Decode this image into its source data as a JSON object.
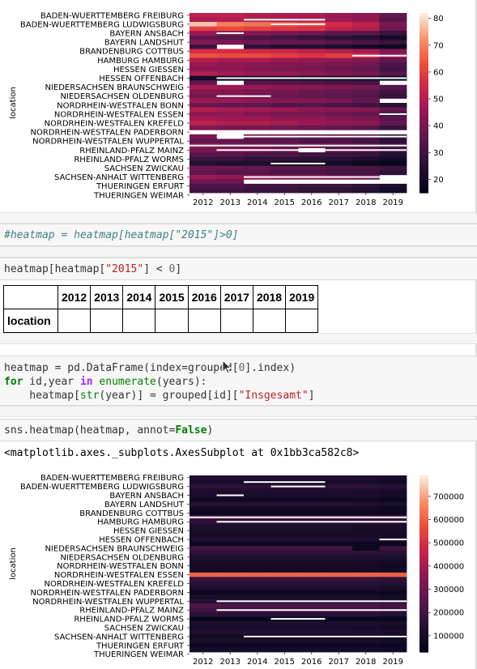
{
  "cells": {
    "comment_cell": {
      "text": "#heatmap = heatmap[heatmap[\"2015\"]>0]"
    },
    "filter_cell": {
      "prefix": "heatmap[heatmap[",
      "string": "\"2015\"",
      "mid": "] < ",
      "number": "0",
      "suffix": "]"
    },
    "build_cell": {
      "line1_a": "heatmap = pd.DataFrame(index=grouped[",
      "line1_num": "0",
      "line1_b": "].index)",
      "line2_kw": "for",
      "line2_a": " id,year ",
      "line2_in": "in",
      "line2_fn": " enumerate",
      "line2_b": "(years):",
      "line3_a": "    heatmap[",
      "line3_fn": "str",
      "line3_b": "(year)] = grouped[id][",
      "line3_str": "\"Insgesamt\"",
      "line3_c": "]"
    },
    "plot_cell": {
      "a": "sns.heatmap(heatmap, annot=",
      "kw": "False",
      "b": ")"
    },
    "output_repr": "<matplotlib.axes._subplots.AxesSubplot at 0x1bb3ca582c8>"
  },
  "table": {
    "columns": [
      "2012",
      "2013",
      "2014",
      "2015",
      "2016",
      "2017",
      "2018",
      "2019"
    ],
    "index_name": "location"
  },
  "chart_data": [
    {
      "type": "heatmap",
      "ylabel": "location",
      "xlabel": "",
      "x": [
        "2012",
        "2013",
        "2014",
        "2015",
        "2016",
        "2017",
        "2018",
        "2019"
      ],
      "y_tick_labels": [
        "BADEN-WUERTTEMBERG FREIBURG",
        "BADEN-WUERTTEMBERG LUDWIGSBURG",
        "BAYERN ANSBACH",
        "BAYERN LANDSHUT",
        "BRANDENBURG COTTBUS",
        "HAMBURG HAMBURG",
        "HESSEN GIESSEN",
        "HESSEN OFFENBACH",
        "NIEDERSACHSEN BRAUNSCHWEIG",
        "NIEDERSACHSEN OLDENBURG",
        "NORDRHEIN-WESTFALEN BONN",
        "NORDRHEIN-WESTFALEN ESSEN",
        "NORDRHEIN-WESTFALEN KREFELD",
        "NORDRHEIN-WESTFALEN PADERBORN",
        "NORDRHEIN-WESTFALEN WUPPERTAL",
        "RHEINLAND-PFALZ MAINZ",
        "RHEINLAND-PFALZ WORMS",
        "SACHSEN ZWICKAU",
        "SACHSEN-ANHALT WITTENBERG",
        "THUERINGEN ERFURT",
        "THUERINGEN WEIMAR"
      ],
      "rows": 40,
      "colorbar_ticks": [
        20,
        30,
        40,
        50,
        60,
        70,
        80
      ],
      "vmin": 15,
      "vmax": 82,
      "colormap": "rocket",
      "values": [
        [
          52,
          52,
          50,
          48,
          48,
          46,
          44,
          36
        ],
        [
          48,
          50,
          50,
          49,
          48,
          46,
          44,
          34
        ],
        [
          78,
          70,
          68,
          64,
          62,
          56,
          52,
          40
        ],
        [
          60,
          62,
          60,
          58,
          57,
          52,
          50,
          38
        ],
        [
          46,
          42,
          42,
          40,
          38,
          34,
          34,
          28
        ],
        [
          36,
          34,
          32,
          30,
          28,
          26,
          24,
          20
        ],
        [
          42,
          40,
          38,
          37,
          36,
          34,
          32,
          28
        ],
        [
          28,
          null,
          26,
          24,
          24,
          22,
          20,
          18
        ],
        [
          56,
          56,
          55,
          54,
          52,
          50,
          48,
          42
        ],
        [
          64,
          62,
          62,
          60,
          58,
          60,
          56,
          46
        ],
        [
          50,
          48,
          48,
          46,
          45,
          44,
          42,
          36
        ],
        [
          46,
          44,
          43,
          42,
          41,
          40,
          38,
          32
        ],
        [
          44,
          44,
          42,
          40,
          40,
          38,
          36,
          30
        ],
        [
          50,
          48,
          46,
          46,
          44,
          42,
          40,
          34
        ],
        [
          20,
          18,
          18,
          18,
          18,
          18,
          18,
          16
        ],
        [
          36,
          null,
          34,
          33,
          32,
          31,
          30,
          null
        ],
        [
          48,
          46,
          46,
          44,
          43,
          42,
          40,
          34
        ],
        [
          42,
          42,
          40,
          39,
          38,
          36,
          35,
          30
        ],
        [
          40,
          40,
          38,
          38,
          36,
          35,
          34,
          28
        ],
        [
          46,
          46,
          44,
          42,
          42,
          40,
          36,
          null
        ],
        [
          38,
          36,
          36,
          34,
          34,
          32,
          30,
          26
        ],
        [
          50,
          48,
          47,
          46,
          44,
          43,
          42,
          36
        ],
        [
          44,
          44,
          42,
          40,
          40,
          38,
          36,
          30
        ],
        [
          48,
          46,
          46,
          44,
          44,
          42,
          40,
          34
        ],
        [
          52,
          50,
          50,
          48,
          46,
          44,
          44,
          36
        ],
        [
          42,
          40,
          40,
          38,
          38,
          36,
          34,
          28
        ],
        [
          null,
          null,
          null,
          null,
          null,
          null,
          null,
          null
        ],
        [
          40,
          null,
          38,
          37,
          36,
          34,
          34,
          28
        ],
        [
          36,
          36,
          34,
          34,
          32,
          32,
          30,
          26
        ],
        [
          44,
          42,
          42,
          40,
          40,
          38,
          36,
          32
        ],
        [
          40,
          40,
          38,
          36,
          null,
          34,
          32,
          28
        ],
        [
          34,
          34,
          32,
          32,
          30,
          30,
          28,
          24
        ],
        [
          28,
          28,
          26,
          26,
          26,
          24,
          22,
          20
        ],
        [
          24,
          22,
          22,
          20,
          20,
          20,
          18,
          16
        ],
        [
          38,
          38,
          36,
          34,
          34,
          32,
          32,
          28
        ],
        [
          36,
          34,
          34,
          32,
          32,
          30,
          30,
          26
        ],
        [
          46,
          44,
          44,
          42,
          42,
          40,
          38,
          null
        ],
        [
          38,
          38,
          null,
          null,
          null,
          null,
          null,
          null
        ],
        [
          32,
          32,
          30,
          30,
          28,
          28,
          26,
          22
        ],
        [
          30,
          30,
          28,
          28,
          26,
          26,
          24,
          20
        ]
      ],
      "gaps": [
        {
          "row": 1,
          "from": 2,
          "to": 5
        },
        {
          "row": 2,
          "from": 3,
          "to": 5
        },
        {
          "row": 4,
          "from": 1,
          "to": 2
        },
        {
          "row": 9,
          "from": 6,
          "to": 8
        },
        {
          "row": 14,
          "from": 1,
          "to": 8
        },
        {
          "row": 18,
          "from": 1,
          "to": 3
        },
        {
          "row": 22,
          "from": 7,
          "to": 8
        },
        {
          "row": 27,
          "from": 1,
          "to": 8
        },
        {
          "row": 29,
          "from": 0,
          "to": 8
        },
        {
          "row": 30,
          "from": 1,
          "to": 8
        },
        {
          "row": 33,
          "from": 3,
          "to": 5
        },
        {
          "row": 36,
          "from": 2,
          "to": 8
        },
        {
          "row": 37,
          "from": 2,
          "to": 5
        }
      ]
    },
    {
      "type": "heatmap",
      "ylabel": "location",
      "xlabel": "",
      "x": [
        "2012",
        "2013",
        "2014",
        "2015",
        "2016",
        "2017",
        "2018",
        "2019"
      ],
      "y_tick_labels": [
        "BADEN-WUERTTEMBERG FREIBURG",
        "BADEN-WUERTTEMBERG LUDWIGSBURG",
        "BAYERN ANSBACH",
        "BAYERN LANDSHUT",
        "BRANDENBURG COTTBUS",
        "HAMBURG HAMBURG",
        "HESSEN GIESSEN",
        "HESSEN OFFENBACH",
        "NIEDERSACHSEN BRAUNSCHWEIG",
        "NIEDERSACHSEN OLDENBURG",
        "NORDRHEIN-WESTFALEN BONN",
        "NORDRHEIN-WESTFALEN ESSEN",
        "NORDRHEIN-WESTFALEN KREFELD",
        "NORDRHEIN-WESTFALEN PADERBORN",
        "NORDRHEIN-WESTFALEN WUPPERTAL",
        "RHEINLAND-PFALZ MAINZ",
        "RHEINLAND-PFALZ WORMS",
        "SACHSEN ZWICKAU",
        "SACHSEN-ANHALT WITTENBERG",
        "THUERINGEN ERFURT",
        "THUERINGEN WEIMAR"
      ],
      "rows": 40,
      "colorbar_ticks": [
        100000,
        200000,
        300000,
        400000,
        500000,
        600000,
        700000
      ],
      "colorbar_labels": [
        "100000",
        "200000",
        "300000",
        "400000",
        "500000",
        "600000",
        "700000"
      ],
      "vmin": 30000,
      "vmax": 790000,
      "colormap": "rocket",
      "values": [
        [
          120000,
          120000,
          120000,
          120000,
          120000,
          120000,
          110000,
          100000
        ],
        [
          90000,
          90000,
          90000,
          90000,
          90000,
          90000,
          90000,
          80000
        ],
        [
          150000,
          150000,
          150000,
          150000,
          150000,
          150000,
          150000,
          140000
        ],
        [
          110000,
          110000,
          110000,
          110000,
          110000,
          110000,
          100000,
          90000
        ],
        [
          100000,
          100000,
          100000,
          100000,
          100000,
          100000,
          95000,
          90000
        ],
        [
          70000,
          70000,
          70000,
          70000,
          70000,
          70000,
          70000,
          60000
        ],
        [
          130000,
          130000,
          130000,
          130000,
          130000,
          130000,
          120000,
          110000
        ],
        [
          80000,
          80000,
          80000,
          80000,
          80000,
          80000,
          80000,
          70000
        ],
        [
          60000,
          60000,
          60000,
          60000,
          60000,
          60000,
          60000,
          60000
        ],
        [
          200000,
          200000,
          200000,
          200000,
          200000,
          200000,
          200000,
          190000
        ],
        [
          160000,
          160000,
          160000,
          160000,
          160000,
          160000,
          160000,
          150000
        ],
        [
          110000,
          110000,
          110000,
          110000,
          110000,
          110000,
          100000,
          100000
        ],
        [
          100000,
          100000,
          100000,
          100000,
          100000,
          100000,
          90000,
          90000
        ],
        [
          90000,
          90000,
          90000,
          90000,
          90000,
          90000,
          90000,
          80000
        ],
        [
          120000,
          120000,
          120000,
          120000,
          120000,
          120000,
          110000,
          110000
        ],
        [
          60000,
          60000,
          60000,
          60000,
          60000,
          60000,
          60000,
          60000
        ],
        [
          200000,
          200000,
          200000,
          200000,
          200000,
          200000,
          60000,
          190000
        ],
        [
          150000,
          150000,
          150000,
          150000,
          150000,
          150000,
          150000,
          140000
        ],
        [
          120000,
          120000,
          120000,
          120000,
          120000,
          120000,
          110000,
          110000
        ],
        [
          100000,
          100000,
          100000,
          100000,
          100000,
          100000,
          100000,
          90000
        ],
        [
          80000,
          80000,
          80000,
          80000,
          80000,
          80000,
          80000,
          70000
        ],
        [
          90000,
          90000,
          90000,
          90000,
          90000,
          90000,
          90000,
          80000
        ],
        [
          610000,
          610000,
          610000,
          610000,
          610000,
          610000,
          610000,
          600000
        ],
        [
          170000,
          170000,
          170000,
          170000,
          170000,
          170000,
          170000,
          160000
        ],
        [
          140000,
          140000,
          140000,
          140000,
          140000,
          140000,
          140000,
          130000
        ],
        [
          110000,
          110000,
          110000,
          110000,
          110000,
          110000,
          110000,
          100000
        ],
        [
          60000,
          60000,
          60000,
          60000,
          60000,
          60000,
          60000,
          60000
        ],
        [
          100000,
          100000,
          100000,
          100000,
          100000,
          100000,
          100000,
          90000
        ],
        [
          130000,
          130000,
          130000,
          130000,
          130000,
          130000,
          130000,
          120000
        ],
        [
          220000,
          220000,
          220000,
          220000,
          220000,
          220000,
          220000,
          210000
        ],
        [
          190000,
          190000,
          190000,
          190000,
          190000,
          190000,
          190000,
          180000
        ],
        [
          150000,
          150000,
          150000,
          150000,
          150000,
          150000,
          150000,
          140000
        ],
        [
          50000,
          50000,
          50000,
          50000,
          50000,
          50000,
          50000,
          50000
        ],
        [
          110000,
          110000,
          110000,
          110000,
          110000,
          110000,
          110000,
          100000
        ],
        [
          90000,
          90000,
          90000,
          90000,
          90000,
          90000,
          90000,
          80000
        ],
        [
          120000,
          120000,
          120000,
          120000,
          120000,
          120000,
          110000,
          110000
        ],
        [
          80000,
          80000,
          80000,
          80000,
          80000,
          80000,
          80000,
          70000
        ],
        [
          100000,
          100000,
          100000,
          100000,
          100000,
          100000,
          100000,
          90000
        ],
        [
          70000,
          70000,
          70000,
          70000,
          70000,
          70000,
          70000,
          60000
        ],
        [
          90000,
          90000,
          90000,
          90000,
          90000,
          90000,
          90000,
          80000
        ]
      ],
      "gaps": [
        {
          "row": 1,
          "from": 2,
          "to": 5
        },
        {
          "row": 2,
          "from": 3,
          "to": 5
        },
        {
          "row": 4,
          "from": 1,
          "to": 2
        },
        {
          "row": 9,
          "from": 0,
          "to": 8
        },
        {
          "row": 10,
          "from": 1,
          "to": 8
        },
        {
          "row": 14,
          "from": 7,
          "to": 8
        },
        {
          "row": 28,
          "from": 1,
          "to": 8
        },
        {
          "row": 30,
          "from": 1,
          "to": 8
        },
        {
          "row": 32,
          "from": 3,
          "to": 5
        },
        {
          "row": 36,
          "from": 2,
          "to": 8
        }
      ]
    }
  ]
}
